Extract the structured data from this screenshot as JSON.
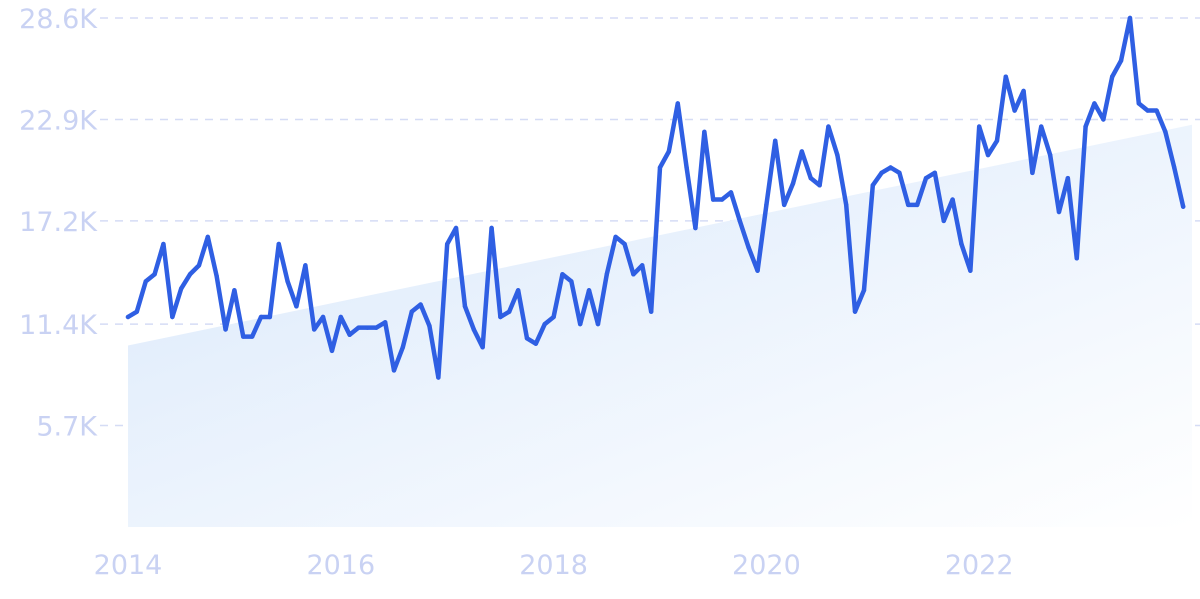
{
  "colors": {
    "line": "#2f5fe3",
    "trend_fill_start": "#d9e8fb",
    "trend_fill_end": "#ffffff",
    "grid": "#d5dcf5",
    "tick_text": "#c9d2f3"
  },
  "chart_data": {
    "type": "line",
    "title": "",
    "xlabel": "",
    "ylabel": "",
    "x_range": [
      2014,
      2024.0
    ],
    "ylim": [
      0,
      28600
    ],
    "y_ticks": [
      {
        "value": 5700,
        "label": "5.7K"
      },
      {
        "value": 11400,
        "label": "11.4K"
      },
      {
        "value": 17200,
        "label": "17.2K"
      },
      {
        "value": 22900,
        "label": "22.9K"
      },
      {
        "value": 28600,
        "label": "28.6K"
      }
    ],
    "x_ticks": [
      {
        "value": 2014,
        "label": "2014"
      },
      {
        "value": 2016,
        "label": "2016"
      },
      {
        "value": 2018,
        "label": "2018"
      },
      {
        "value": 2020,
        "label": "2020"
      },
      {
        "value": 2022,
        "label": "2022"
      }
    ],
    "grid": "horizontal-dashed",
    "legend": "none",
    "trend": {
      "start": [
        2014,
        10200
      ],
      "end": [
        2024.0,
        22600
      ]
    },
    "series": [
      {
        "x": [
          2014.0,
          2014.083,
          2014.167,
          2014.25,
          2014.333,
          2014.417,
          2014.5,
          2014.583,
          2014.667,
          2014.75,
          2014.833,
          2014.917,
          2015.0,
          2015.083,
          2015.167,
          2015.25,
          2015.333,
          2015.417,
          2015.5,
          2015.583,
          2015.667,
          2015.75,
          2015.833,
          2015.917,
          2016.0,
          2016.083,
          2016.167,
          2016.25,
          2016.333,
          2016.417,
          2016.5,
          2016.583,
          2016.667,
          2016.75,
          2016.833,
          2016.917,
          2017.0,
          2017.083,
          2017.167,
          2017.25,
          2017.333,
          2017.417,
          2017.5,
          2017.583,
          2017.667,
          2017.75,
          2017.833,
          2017.917,
          2018.0,
          2018.083,
          2018.167,
          2018.25,
          2018.333,
          2018.417,
          2018.5,
          2018.583,
          2018.667,
          2018.75,
          2018.833,
          2018.917,
          2019.0,
          2019.083,
          2019.167,
          2019.25,
          2019.333,
          2019.417,
          2019.5,
          2019.583,
          2019.667,
          2019.75,
          2019.833,
          2019.917,
          2020.0,
          2020.083,
          2020.167,
          2020.25,
          2020.333,
          2020.417,
          2020.5,
          2020.583,
          2020.667,
          2020.75,
          2020.833,
          2020.917,
          2021.0,
          2021.083,
          2021.167,
          2021.25,
          2021.333,
          2021.417,
          2021.5,
          2021.583,
          2021.667,
          2021.75,
          2021.833,
          2021.917,
          2022.0,
          2022.083,
          2022.167,
          2022.25,
          2022.333,
          2022.417,
          2022.5,
          2022.583,
          2022.667,
          2022.75,
          2022.833,
          2022.917,
          2023.0,
          2023.083,
          2023.167,
          2023.25,
          2023.333,
          2023.417,
          2023.5,
          2023.583,
          2023.667,
          2023.75,
          2023.833,
          2023.917
        ],
        "values": [
          11800,
          12100,
          13800,
          14200,
          15900,
          11800,
          13400,
          14200,
          14700,
          16300,
          14100,
          11100,
          13300,
          10700,
          10700,
          11800,
          11800,
          15900,
          13800,
          12400,
          14700,
          11100,
          11800,
          9900,
          11800,
          10800,
          11200,
          11200,
          11200,
          11500,
          8800,
          10100,
          12100,
          12500,
          11300,
          8400,
          15900,
          16800,
          12400,
          11100,
          10100,
          16800,
          11800,
          12100,
          13300,
          10600,
          10300,
          11400,
          11800,
          14200,
          13800,
          11400,
          13300,
          11400,
          14200,
          16300,
          15900,
          14200,
          14700,
          12100,
          20200,
          21100,
          23800,
          20200,
          16800,
          22200,
          18400,
          18400,
          18800,
          17200,
          15700,
          14400,
          18100,
          21700,
          18100,
          19300,
          21100,
          19600,
          19200,
          22500,
          20900,
          18100,
          12100,
          13300,
          19200,
          19900,
          20200,
          19900,
          18100,
          18100,
          19600,
          19900,
          17200,
          18400,
          15900,
          14400,
          22500,
          20900,
          21700,
          25300,
          23400,
          24500,
          19900,
          22500,
          20900,
          17700,
          19600,
          15100,
          22500,
          23800,
          22900,
          25300,
          26200,
          28600,
          23800,
          23400,
          23400,
          22200,
          20200,
          18000
        ]
      }
    ]
  }
}
